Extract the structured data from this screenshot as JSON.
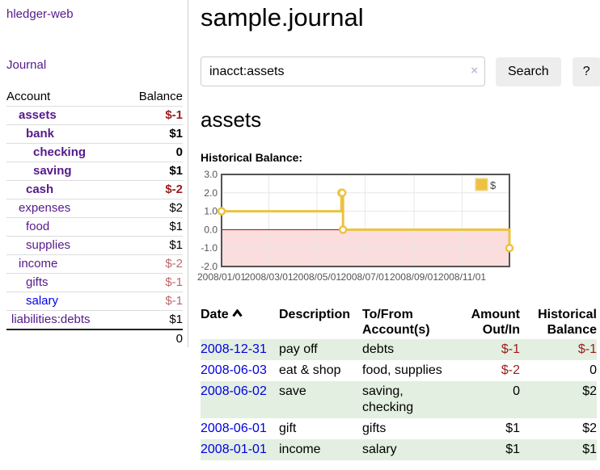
{
  "colors": {
    "link_visited_purple": "#551a8b",
    "link_blue": "#0000ee",
    "date_link_blue": "#0000e0",
    "negative_strong_red": "#9c1b1b",
    "negative_soft_red": "#bd686c",
    "row_stripe_green": "#e3efe0",
    "chart_line_gold": "#edc240",
    "chart_negative_region_pink": "#fbdddd",
    "chart_zero_line_red": "#a40000",
    "chart_border_gray": "#545454"
  },
  "sidebar": {
    "brand": "hledger-web",
    "nav_journal": "Journal",
    "table": {
      "account_header": "Account",
      "balance_header": "Balance"
    },
    "accounts": [
      {
        "label": "assets",
        "level": 1,
        "emphasis": true,
        "link_color": "purple",
        "balance": "$-1",
        "balance_class": "neg-strong"
      },
      {
        "label": "bank",
        "level": 2,
        "emphasis": true,
        "link_color": "purple",
        "balance": "$1",
        "balance_class": "pos-strong"
      },
      {
        "label": "checking",
        "level": 3,
        "emphasis": true,
        "link_color": "purple",
        "balance": "0",
        "balance_class": "pos-strong"
      },
      {
        "label": "saving",
        "level": 3,
        "emphasis": true,
        "link_color": "purple",
        "balance": "$1",
        "balance_class": "pos-strong"
      },
      {
        "label": "cash",
        "level": 2,
        "emphasis": true,
        "link_color": "purple",
        "balance": "$-2",
        "balance_class": "neg-strong"
      },
      {
        "label": "expenses",
        "level": 1,
        "emphasis": false,
        "link_color": "purple",
        "balance": "$2",
        "balance_class": "pos"
      },
      {
        "label": "food",
        "level": 2,
        "emphasis": false,
        "link_color": "purple",
        "balance": "$1",
        "balance_class": "pos"
      },
      {
        "label": "supplies",
        "level": 2,
        "emphasis": false,
        "link_color": "purple",
        "balance": "$1",
        "balance_class": "pos"
      },
      {
        "label": "income",
        "level": 1,
        "emphasis": false,
        "link_color": "purple",
        "balance": "$-2",
        "balance_class": "neg-soft"
      },
      {
        "label": "gifts",
        "level": 2,
        "emphasis": false,
        "link_color": "purple",
        "balance": "$-1",
        "balance_class": "neg-soft"
      },
      {
        "label": "salary",
        "level": 2,
        "emphasis": false,
        "link_color": "blue",
        "balance": "$-1",
        "balance_class": "neg-soft"
      },
      {
        "label": "liabilities:debts",
        "level": 0,
        "emphasis": false,
        "link_color": "purple",
        "balance": "$1",
        "balance_class": "pos"
      }
    ],
    "total": "0"
  },
  "main": {
    "title": "sample.journal",
    "search": {
      "value": "inacct:assets",
      "clear_icon": "×",
      "search_button": "Search",
      "help_button": "?"
    },
    "account_heading": "assets",
    "chart_title": "Historical Balance:"
  },
  "chart_data": {
    "type": "line",
    "title": "Historical Balance",
    "legend": {
      "label": "$",
      "position": "top-right"
    },
    "x_tick_labels": [
      "2008/01/01",
      "2008/03/01",
      "2008/05/01",
      "2008/07/01",
      "2008/09/01",
      "2008/11/01"
    ],
    "x_tick_days": [
      0,
      60,
      121,
      182,
      244,
      305
    ],
    "x_range_days": [
      0,
      365
    ],
    "y_ticks": [
      "3.0",
      "2.0",
      "1.0",
      "0.0",
      "-1.0",
      "-2.0"
    ],
    "y_tick_values": [
      3,
      2,
      1,
      0,
      -1,
      -2
    ],
    "ylim": [
      -2,
      3
    ],
    "grid": true,
    "step": "after",
    "series": [
      {
        "name": "$",
        "color": "#edc240",
        "points": [
          {
            "date": "2008-01-01",
            "day": 0,
            "value": 1
          },
          {
            "date": "2008-06-01",
            "day": 152,
            "value": 2
          },
          {
            "date": "2008-06-02",
            "day": 153,
            "value": 2
          },
          {
            "date": "2008-06-03",
            "day": 154,
            "value": 0
          },
          {
            "date": "2008-12-31",
            "day": 365,
            "value": -1
          }
        ]
      }
    ]
  },
  "register": {
    "sort": {
      "column": "Date",
      "direction": "ascending"
    },
    "headers": {
      "date": "Date",
      "description": "Description",
      "accounts": "To/From Account(s)",
      "amount": "Amount Out/In",
      "balance": "Historical Balance"
    },
    "rows": [
      {
        "date": "2008-12-31",
        "description": "pay off",
        "accounts": "debts",
        "amount": "$-1",
        "amount_class": "neg-strong",
        "balance": "$-1",
        "balance_class": "neg-strong",
        "stripe": true
      },
      {
        "date": "2008-06-03",
        "description": "eat & shop",
        "accounts": "food, supplies",
        "amount": "$-2",
        "amount_class": "neg-strong",
        "balance": "0",
        "balance_class": "pos",
        "stripe": false
      },
      {
        "date": "2008-06-02",
        "description": "save",
        "accounts": "saving, checking",
        "amount": "0",
        "amount_class": "pos",
        "balance": "$2",
        "balance_class": "pos",
        "stripe": true
      },
      {
        "date": "2008-06-01",
        "description": "gift",
        "accounts": "gifts",
        "amount": "$1",
        "amount_class": "pos",
        "balance": "$2",
        "balance_class": "pos",
        "stripe": false
      },
      {
        "date": "2008-01-01",
        "description": "income",
        "accounts": "salary",
        "amount": "$1",
        "amount_class": "pos",
        "balance": "$1",
        "balance_class": "pos",
        "stripe": true
      }
    ]
  }
}
